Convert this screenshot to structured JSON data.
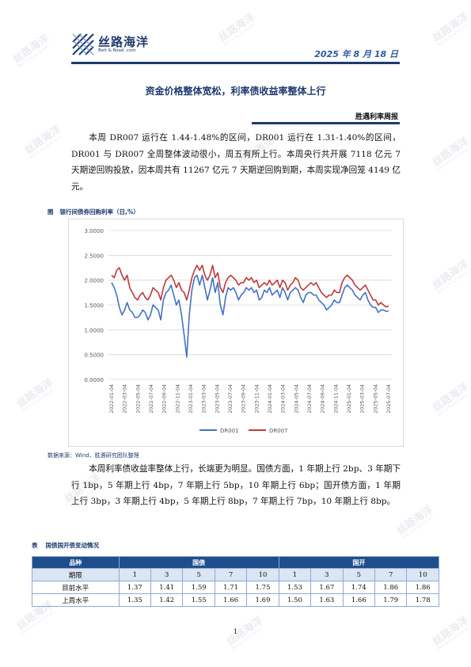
{
  "header": {
    "logo_name": "丝路海洋",
    "logo_sub": "Belt & Road .com",
    "date": "2025 年 8 月 18 日"
  },
  "watermark": {
    "name": "丝路海洋",
    "sub": "Belt & Road Ocean"
  },
  "title": "资金价格整体宽松，利率债收益率整体上行",
  "series_tag": "胜遇利率周报",
  "paragraph1": "本周 DR007 运行在 1.44-1.48%的区间，DR001 运行在 1.31-1.40%的区间，DR001 与 DR007 全周整体波动很小，周五有所上行。本周央行共开展 7118 亿元 7 天期逆回购投放，因本周共有 11267 亿元 7 天期逆回购到期，本周实现净回笼 4149 亿元。",
  "figure": {
    "label": "图",
    "caption": "银行间债券回购利率（日,%）",
    "source": "数据来源：Wind、胜遇研究团队整理"
  },
  "paragraph2": "本周利率债收益率整体上行，长端更为明显。国债方面，1 年期上行 2bp、3 年期下行 1bp，5 年期上行 4bp，7 年期上行 5bp，10 年期上行 6bp；国开债方面，1 年期上行 3bp，3 年期上行 4bp，5 年期上行 8bp，7 年期上行 7bp，10 年期上行 8bp。",
  "table": {
    "label": "表",
    "caption": "国债国开债变动情况",
    "h_category": "品种",
    "h_gov": "国债",
    "h_cdb": "国开",
    "h_term": "期限",
    "terms": [
      "1",
      "3",
      "5",
      "7",
      "10"
    ],
    "rows": [
      {
        "label": "目前水平",
        "gov": [
          "1.37",
          "1.41",
          "1.59",
          "1.71",
          "1.75"
        ],
        "cdb": [
          "1.53",
          "1.67",
          "1.74",
          "1.86",
          "1.86"
        ]
      },
      {
        "label": "上周水平",
        "gov": [
          "1.35",
          "1.42",
          "1.55",
          "1.66",
          "1.69"
        ],
        "cdb": [
          "1.50",
          "1.63",
          "1.66",
          "1.79",
          "1.78"
        ]
      }
    ]
  },
  "page_number": "1",
  "chart_data": {
    "type": "line",
    "ylim": [
      0,
      3
    ],
    "yticks": [
      "0.0000",
      "0.5000",
      "1.0000",
      "1.5000",
      "2.0000",
      "2.5000",
      "3.0000"
    ],
    "x_labels": [
      "2022-01-04",
      "2022-03-04",
      "2022-05-04",
      "2022-07-04",
      "2022-09-04",
      "2022-11-04",
      "2023-01-04",
      "2023-03-04",
      "2023-05-04",
      "2023-07-04",
      "2023-09-04",
      "2023-11-04",
      "2024-01-04",
      "2024-03-04",
      "2024-05-04",
      "2024-07-04",
      "2024-09-04",
      "2024-11-04",
      "2025-01-04",
      "2025-03-04",
      "2025-05-04",
      "2025-07-04"
    ],
    "legend_position": "bottom",
    "grid": true,
    "series": [
      {
        "name": "DR001",
        "color": "#4472c4",
        "values": [
          1.95,
          1.85,
          1.7,
          1.45,
          1.3,
          1.4,
          1.55,
          1.4,
          1.35,
          1.25,
          1.25,
          1.3,
          1.4,
          1.35,
          1.2,
          1.3,
          1.5,
          1.45,
          1.4,
          1.2,
          1.6,
          1.75,
          1.8,
          1.9,
          1.7,
          1.5,
          1.6,
          1.3,
          0.9,
          0.45,
          1.3,
          1.8,
          2.05,
          2.1,
          1.9,
          2.1,
          1.85,
          1.6,
          1.8,
          2.05,
          1.75,
          1.95,
          1.5,
          1.3,
          1.65,
          1.85,
          1.8,
          1.85,
          1.75,
          1.6,
          1.7,
          1.75,
          1.85,
          1.8,
          1.85,
          1.75,
          1.8,
          1.6,
          1.65,
          1.8,
          1.75,
          1.85,
          1.7,
          1.75,
          1.8,
          1.65,
          1.85,
          1.75,
          1.6,
          1.75,
          1.8,
          1.85,
          1.8,
          1.65,
          1.55,
          1.7,
          1.75,
          1.75,
          1.7,
          1.7,
          1.6,
          1.55,
          1.5,
          1.4,
          1.45,
          1.5,
          1.6,
          1.55,
          1.55,
          1.7,
          1.85,
          1.9,
          1.85,
          1.8,
          1.7,
          1.65,
          1.6,
          1.7,
          1.75,
          1.6,
          1.5,
          1.45,
          1.45,
          1.35,
          1.4,
          1.4,
          1.37,
          1.38
        ]
      },
      {
        "name": "DR007",
        "color": "#c0393b",
        "values": [
          2.1,
          2.05,
          2.2,
          2.25,
          2.1,
          2.0,
          2.1,
          1.85,
          1.75,
          1.65,
          1.6,
          1.7,
          1.75,
          1.65,
          1.6,
          1.7,
          1.85,
          1.8,
          1.75,
          1.6,
          1.85,
          2.0,
          2.05,
          2.1,
          2.0,
          1.85,
          1.95,
          1.8,
          1.75,
          1.6,
          1.8,
          2.05,
          2.2,
          2.3,
          2.2,
          2.3,
          2.1,
          2.0,
          2.1,
          2.3,
          2.05,
          2.15,
          1.85,
          1.75,
          1.95,
          2.05,
          2.1,
          2.05,
          2.0,
          1.9,
          1.95,
          1.95,
          2.05,
          2.0,
          2.05,
          1.95,
          2.0,
          1.85,
          1.9,
          1.95,
          1.9,
          2.0,
          1.9,
          1.95,
          2.0,
          1.85,
          2.0,
          1.95,
          1.8,
          1.9,
          1.95,
          2.05,
          2.0,
          1.85,
          1.8,
          1.85,
          1.9,
          1.95,
          1.9,
          1.95,
          1.85,
          1.75,
          1.7,
          1.65,
          1.7,
          1.7,
          1.8,
          1.75,
          1.75,
          1.95,
          2.05,
          2.1,
          2.05,
          2.0,
          1.9,
          1.85,
          1.8,
          1.85,
          1.9,
          1.8,
          1.7,
          1.6,
          1.6,
          1.5,
          1.55,
          1.5,
          1.46,
          1.48
        ]
      }
    ]
  }
}
